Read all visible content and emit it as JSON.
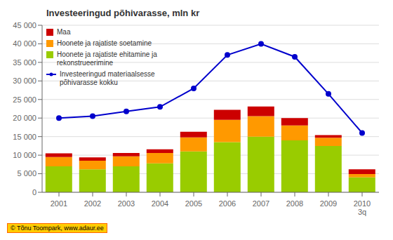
{
  "chart_data": {
    "type": "bar",
    "title": "Investeeringud põhivarasse, mln kr",
    "categories": [
      "2001",
      "2002",
      "2003",
      "2004",
      "2005",
      "2006",
      "2007",
      "2008",
      "2009",
      "2010\n3q"
    ],
    "series": [
      {
        "name": "Hoonete ja rajatiste ehitamine ja\nrekonstrueerimine",
        "color": "#99cc00",
        "values": [
          7000,
          6200,
          7000,
          7800,
          11000,
          13500,
          15000,
          14000,
          12500,
          4000
        ]
      },
      {
        "name": "Hoonete ja rajatiste soetamine",
        "color": "#ff9900",
        "values": [
          2500,
          2300,
          2700,
          2800,
          3800,
          6000,
          5500,
          4000,
          2200,
          900
        ]
      },
      {
        "name": "Maa",
        "color": "#cc0000",
        "values": [
          1000,
          900,
          900,
          1000,
          1500,
          2700,
          2600,
          2000,
          700,
          1300
        ]
      },
      {
        "name": "Investeeringud materiaalsesse\npõhivarasse kokku",
        "type": "line",
        "color": "#0000cc",
        "marker": "circle",
        "values": [
          20000,
          20500,
          21800,
          23000,
          28000,
          37000,
          40000,
          36500,
          26500,
          16000
        ]
      }
    ],
    "stacked": true,
    "ylim": [
      0,
      45000
    ],
    "yticks": [
      0,
      {
        "value": 5000,
        "label": "5 000"
      },
      {
        "value": 10000,
        "label": "10 000"
      },
      {
        "value": 15000,
        "label": "15 000"
      },
      {
        "value": 20000,
        "label": "20 000"
      },
      {
        "value": 25000,
        "label": "25 000"
      },
      {
        "value": 30000,
        "label": "30 000"
      },
      {
        "value": 35000,
        "label": "35 000"
      },
      {
        "value": 40000,
        "label": "40 000"
      },
      {
        "value": 45000,
        "label": "45 000"
      }
    ],
    "grid": true,
    "legend": "upper left",
    "annotations": [
      "© Tõnu Toompark, www.adaur.ee"
    ]
  }
}
